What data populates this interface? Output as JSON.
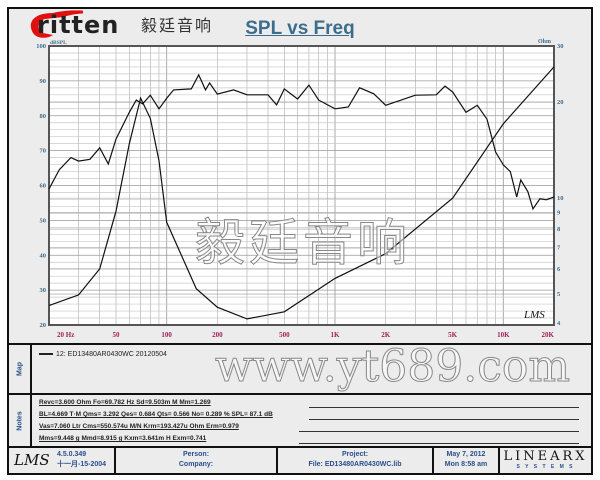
{
  "chart_data": {
    "type": "line",
    "title": "SPL vs Freq",
    "x_scale": "log",
    "xlim": [
      20,
      20000
    ],
    "x_tick_labels": [
      "20  Hz",
      "50",
      "100",
      "200",
      "500",
      "1K",
      "2K",
      "5K",
      "10K",
      "20K"
    ],
    "x_ticks": [
      20,
      50,
      100,
      200,
      500,
      1000,
      2000,
      5000,
      10000,
      20000
    ],
    "ylabel_left": "dBSPL",
    "ylim_left": [
      20,
      100
    ],
    "y_ticks_left": [
      20,
      30,
      40,
      50,
      60,
      70,
      80,
      90,
      100
    ],
    "ylabel_right": "Ohm",
    "y_scale_right": "log",
    "ylim_right": [
      4,
      30
    ],
    "y_ticks_right": [
      4,
      5,
      6,
      7,
      8,
      9,
      10,
      20,
      30
    ],
    "grid": true,
    "watermark_mark": "LMS",
    "series": [
      {
        "axis": "left",
        "x": [
          20,
          23,
          27,
          30,
          35,
          40,
          45,
          50,
          60,
          66,
          72,
          80,
          90,
          100,
          110,
          140,
          155,
          170,
          180,
          200,
          250,
          300,
          400,
          450,
          500,
          600,
          700,
          800,
          1000,
          1200,
          1400,
          1700,
          2000,
          3000,
          4000,
          4500,
          5000,
          6000,
          7000,
          8000,
          9000,
          10000,
          11000,
          12000,
          12700,
          14000,
          15000,
          16500,
          18000,
          20000
        ],
        "y": [
          59,
          64.5,
          68,
          67,
          67.5,
          70.8,
          66.2,
          73.3,
          81,
          84.5,
          83.4,
          85.9,
          82,
          85,
          87.4,
          87.7,
          91.7,
          87.4,
          89.4,
          86.2,
          87.4,
          86,
          86,
          83.1,
          87.7,
          84.8,
          88.8,
          84.5,
          82,
          82.5,
          88,
          86.3,
          83,
          85.9,
          86,
          88.5,
          86.8,
          81,
          83,
          79,
          69.6,
          65.9,
          64,
          56.7,
          61.6,
          58.2,
          53.3,
          56.2,
          55.9,
          56.7
        ]
      },
      {
        "axis": "right",
        "x": [
          20,
          30,
          40,
          50,
          60,
          70,
          80,
          90,
          100,
          150,
          200,
          300,
          500,
          1000,
          2000,
          5000,
          10000,
          20000
        ],
        "y": [
          4.6,
          4.97,
          6.0,
          9.1,
          14.8,
          20.6,
          17.8,
          13.1,
          8.4,
          5.2,
          4.55,
          4.18,
          4.4,
          5.6,
          6.7,
          10.0,
          17.1,
          25.8
        ]
      }
    ]
  },
  "logo": {
    "word": "ritten",
    "cn": "毅廷音响"
  },
  "map": {
    "label": "Map",
    "legend": "12: ED13480AR0430WC 20120504"
  },
  "notes": {
    "label": "Notes",
    "lines": [
      "Revc=3.600 Ohm  Fo=69.782 Hz  Sd=9.503m M  Mm=1.269",
      "BL=4.669 T·M  Qms= 3.292  Qes= 0.684  Qts= 0.566  No= 0.289 %  SPL= 87.1 dB",
      "Vas=7.060 Ltr  Cms=550.574u M/N  Krm=193.427u Ohm  Erm=0.979",
      "Mms=9.448 g  Mmd=8.915 g  Kxm=3.641m H  Exm=0.741"
    ]
  },
  "footer": {
    "lms": "LMS",
    "version": "4.5.0.349",
    "build_date": "十一月-15-2004",
    "person": "Person:",
    "company": "Company:",
    "project": "Project:",
    "file": "File: ED13480AR0430WC.lib",
    "date": "May 7, 2012",
    "time": "Mon  8:58 am",
    "brand": "LINEARX",
    "brand_sub": "S Y S T E M S"
  },
  "watermarks": {
    "cn": "毅廷音响",
    "url": "www.yt689.com"
  }
}
